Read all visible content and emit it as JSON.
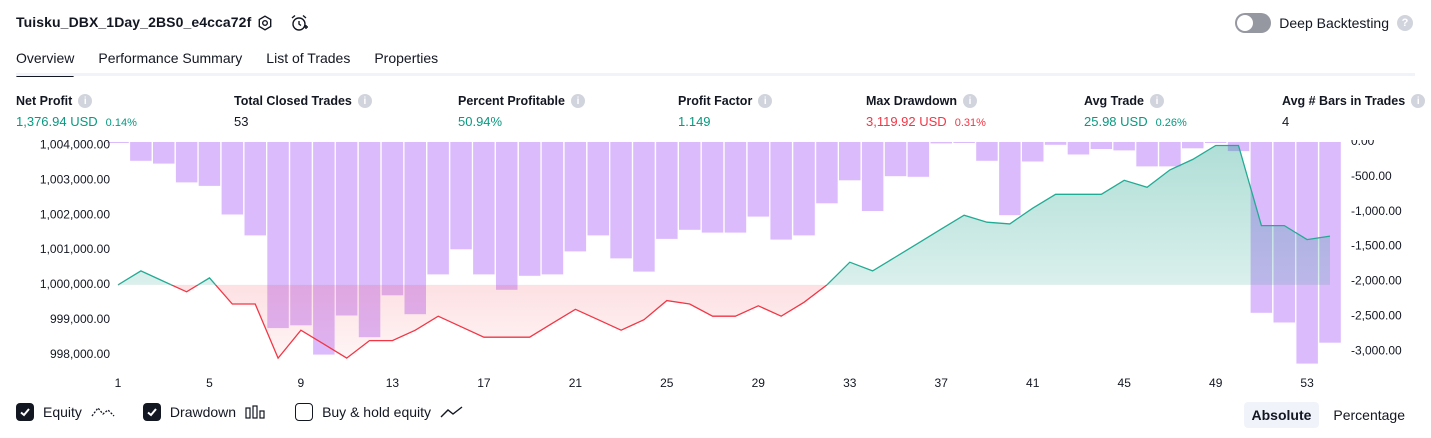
{
  "header": {
    "title": "Tuisku_DBX_1Day_2BS0_e4cca72f",
    "deep_backtesting_label": "Deep Backtesting",
    "deep_backtesting_on": false
  },
  "tabs": [
    {
      "label": "Overview",
      "active": true
    },
    {
      "label": "Performance Summary",
      "active": false
    },
    {
      "label": "List of Trades",
      "active": false
    },
    {
      "label": "Properties",
      "active": false
    }
  ],
  "stats": [
    {
      "label": "Net Profit",
      "value": "1,376.94 USD",
      "pct": "0.14%",
      "tone": "green"
    },
    {
      "label": "Total Closed Trades",
      "value": "53",
      "pct": "",
      "tone": "dark"
    },
    {
      "label": "Percent Profitable",
      "value": "50.94%",
      "pct": "",
      "tone": "green"
    },
    {
      "label": "Profit Factor",
      "value": "1.149",
      "pct": "",
      "tone": "green"
    },
    {
      "label": "Max Drawdown",
      "value": "3,119.92 USD",
      "pct": "0.31%",
      "tone": "red"
    },
    {
      "label": "Avg Trade",
      "value": "25.98 USD",
      "pct": "0.26%",
      "tone": "green"
    },
    {
      "label": "Avg # Bars in Trades",
      "value": "4",
      "pct": "",
      "tone": "dark"
    }
  ],
  "legend": {
    "equity_label": "Equity",
    "equity_checked": true,
    "drawdown_label": "Drawdown",
    "drawdown_checked": true,
    "buyhold_label": "Buy & hold equity",
    "buyhold_checked": false
  },
  "modes": {
    "absolute": "Absolute",
    "percentage": "Percentage",
    "active": "absolute"
  },
  "colors": {
    "positive": "#089981",
    "negative": "#f23645",
    "drawdown_bar": "#dcbbfc",
    "equity_line_pos": "#22ab94",
    "equity_line_neg": "#f23645"
  },
  "chart_data": {
    "type": "line",
    "x_ticks": [
      "1",
      "5",
      "9",
      "13",
      "17",
      "21",
      "25",
      "29",
      "33",
      "37",
      "41",
      "45",
      "49",
      "53"
    ],
    "y_left_ticks": [
      "1,004,000.00",
      "1,003,000.00",
      "1,002,000.00",
      "1,001,000.00",
      "1,000,000.00",
      "999,000.00",
      "998,000.00"
    ],
    "y_right_ticks": [
      "0.00",
      "-500.00",
      "-1,000.00",
      "-1,500.00",
      "-2,000.00",
      "-2,500.00",
      "-3,000.00"
    ],
    "y_left_range": [
      997500,
      1004100
    ],
    "y_right_range": [
      -3300,
      0
    ],
    "baseline": 1000000,
    "series": [
      {
        "name": "Equity",
        "x": [
          1,
          2,
          3,
          4,
          5,
          6,
          7,
          8,
          9,
          10,
          11,
          12,
          13,
          14,
          15,
          16,
          17,
          18,
          19,
          20,
          21,
          22,
          23,
          24,
          25,
          26,
          27,
          28,
          29,
          30,
          31,
          32,
          33,
          34,
          35,
          36,
          37,
          38,
          39,
          40,
          41,
          42,
          43,
          44,
          45,
          46,
          47,
          48,
          49,
          50,
          51,
          52,
          53,
          54
        ],
        "values": [
          1000000,
          1000400,
          1000100,
          999800,
          1000200,
          999450,
          999450,
          997900,
          998700,
          998300,
          997900,
          998400,
          998400,
          998700,
          999100,
          998800,
          998500,
          998500,
          998500,
          998900,
          999300,
          999000,
          998700,
          999000,
          999550,
          999450,
          999100,
          999100,
          999400,
          999100,
          999500,
          1000000,
          1000650,
          1000400,
          1000800,
          1001200,
          1001600,
          1002000,
          1001800,
          1001750,
          1002200,
          1002600,
          1002600,
          1002600,
          1003000,
          1002800,
          1003300,
          1003600,
          1004000,
          1004000,
          1001700,
          1001700,
          1001300,
          1001400
        ]
      },
      {
        "name": "Drawdown",
        "x": [
          1,
          2,
          3,
          4,
          5,
          6,
          7,
          8,
          9,
          10,
          11,
          12,
          13,
          14,
          15,
          16,
          17,
          18,
          19,
          20,
          21,
          22,
          23,
          24,
          25,
          26,
          27,
          28,
          29,
          30,
          31,
          32,
          33,
          34,
          35,
          36,
          37,
          38,
          39,
          40,
          41,
          42,
          43,
          44,
          45,
          46,
          47,
          48,
          49,
          50,
          51,
          52,
          53,
          54
        ],
        "values": [
          0,
          -270,
          -310,
          -580,
          -630,
          -1040,
          -1340,
          -2670,
          -2630,
          -3050,
          -2490,
          -2800,
          -2200,
          -2470,
          -1900,
          -1540,
          -1900,
          -2120,
          -1920,
          -1900,
          -1570,
          -1340,
          -1670,
          -1860,
          -1390,
          -1260,
          -1300,
          -1300,
          -1070,
          -1400,
          -1340,
          -880,
          -550,
          -990,
          -490,
          -500,
          -20,
          0,
          -270,
          -1050,
          -280,
          -40,
          -180,
          -100,
          -120,
          -350,
          -350,
          -90,
          0,
          -130,
          -2450,
          -2590,
          -3180,
          -2880
        ]
      }
    ],
    "grid": false,
    "legend_position": "bottom-left"
  }
}
